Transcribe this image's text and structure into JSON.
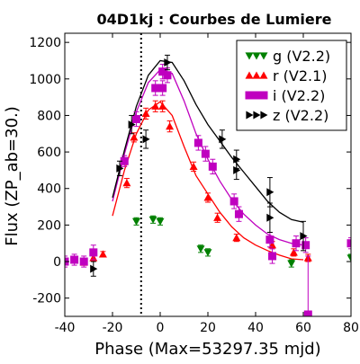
{
  "chart_data": {
    "type": "scatter",
    "title": "04D1kj : Courbes de Lumiere",
    "xlabel": "Phase (Max=53297.35 mjd)",
    "ylabel": "Flux (ZP_ab=30.)",
    "xlim": [
      -40,
      80
    ],
    "ylim": [
      -300,
      1250
    ],
    "xticks": [
      -40,
      -20,
      0,
      20,
      40,
      60,
      80
    ],
    "yticks": [
      -200,
      0,
      200,
      400,
      600,
      800,
      1000,
      1200
    ],
    "grid": false,
    "legend_position": "top-right",
    "vline_x": -8,
    "series": [
      {
        "name": "g (V2.2)",
        "color": "#008000",
        "marker": "triangle-down",
        "points": [
          {
            "x": -10,
            "y": 220,
            "err": 20
          },
          {
            "x": -3,
            "y": 230,
            "err": 20
          },
          {
            "x": 0,
            "y": 220,
            "err": 20
          },
          {
            "x": 17,
            "y": 70,
            "err": 20
          },
          {
            "x": 20,
            "y": 50,
            "err": 20
          },
          {
            "x": 55,
            "y": -10,
            "err": 20
          },
          {
            "x": 80,
            "y": 20,
            "err": 20
          }
        ]
      },
      {
        "name": "r (V2.1)",
        "color": "#ff0000",
        "marker": "triangle-up",
        "points": [
          {
            "x": -36,
            "y": 10,
            "err": 15
          },
          {
            "x": -32,
            "y": -5,
            "err": 15
          },
          {
            "x": -28,
            "y": 20,
            "err": 15
          },
          {
            "x": -24,
            "y": 40,
            "err": 15
          },
          {
            "x": -14,
            "y": 430,
            "err": 25
          },
          {
            "x": -11,
            "y": 680,
            "err": 25
          },
          {
            "x": -6,
            "y": 810,
            "err": 30
          },
          {
            "x": -2,
            "y": 850,
            "err": 30
          },
          {
            "x": 1,
            "y": 850,
            "err": 30
          },
          {
            "x": 4,
            "y": 740,
            "err": 30
          },
          {
            "x": 14,
            "y": 520,
            "err": 25
          },
          {
            "x": 20,
            "y": 350,
            "err": 25
          },
          {
            "x": 24,
            "y": 240,
            "err": 25
          },
          {
            "x": 32,
            "y": 130,
            "err": 20
          },
          {
            "x": 47,
            "y": 90,
            "err": 20
          },
          {
            "x": 56,
            "y": 50,
            "err": 20
          },
          {
            "x": 62,
            "y": 20,
            "err": 20
          }
        ],
        "curve": [
          {
            "x": -20,
            "y": 250
          },
          {
            "x": -15,
            "y": 500
          },
          {
            "x": -10,
            "y": 700
          },
          {
            "x": -5,
            "y": 830
          },
          {
            "x": 0,
            "y": 875
          },
          {
            "x": 5,
            "y": 800
          },
          {
            "x": 10,
            "y": 630
          },
          {
            "x": 15,
            "y": 470
          },
          {
            "x": 20,
            "y": 370
          },
          {
            "x": 25,
            "y": 270
          },
          {
            "x": 30,
            "y": 190
          },
          {
            "x": 35,
            "y": 130
          },
          {
            "x": 40,
            "y": 90
          },
          {
            "x": 45,
            "y": 60
          },
          {
            "x": 50,
            "y": 35
          },
          {
            "x": 55,
            "y": 15
          },
          {
            "x": 60,
            "y": 10
          }
        ]
      },
      {
        "name": "i (V2.2)",
        "color": "#bf00bf",
        "marker": "square",
        "points": [
          {
            "x": -40,
            "y": 0,
            "err": 30
          },
          {
            "x": -36,
            "y": 10,
            "err": 30
          },
          {
            "x": -32,
            "y": 0,
            "err": 30
          },
          {
            "x": -28,
            "y": 50,
            "err": 40
          },
          {
            "x": -15,
            "y": 550,
            "err": 30
          },
          {
            "x": -10,
            "y": 780,
            "err": 40
          },
          {
            "x": -2,
            "y": 950,
            "err": 40
          },
          {
            "x": 1,
            "y": 950,
            "err": 40
          },
          {
            "x": 1,
            "y": 1040,
            "err": 40
          },
          {
            "x": 3,
            "y": 1020,
            "err": 40
          },
          {
            "x": 16,
            "y": 650,
            "err": 40
          },
          {
            "x": 19,
            "y": 590,
            "err": 40
          },
          {
            "x": 22,
            "y": 520,
            "err": 40
          },
          {
            "x": 31,
            "y": 330,
            "err": 40
          },
          {
            "x": 33,
            "y": 260,
            "err": 40
          },
          {
            "x": 46,
            "y": 120,
            "err": 40
          },
          {
            "x": 47,
            "y": 30,
            "err": 40
          },
          {
            "x": 57,
            "y": 100,
            "err": 40
          },
          {
            "x": 61,
            "y": 90,
            "err": 40
          },
          {
            "x": 62,
            "y": -290,
            "err": 320
          },
          {
            "x": 80,
            "y": 100,
            "err": 30
          }
        ],
        "curve": [
          {
            "x": -20,
            "y": 330
          },
          {
            "x": -15,
            "y": 590
          },
          {
            "x": -10,
            "y": 820
          },
          {
            "x": -5,
            "y": 980
          },
          {
            "x": 0,
            "y": 1050
          },
          {
            "x": 5,
            "y": 1030
          },
          {
            "x": 10,
            "y": 880
          },
          {
            "x": 15,
            "y": 700
          },
          {
            "x": 20,
            "y": 560
          },
          {
            "x": 25,
            "y": 440
          },
          {
            "x": 30,
            "y": 340
          },
          {
            "x": 35,
            "y": 260
          },
          {
            "x": 40,
            "y": 200
          },
          {
            "x": 45,
            "y": 150
          },
          {
            "x": 50,
            "y": 120
          },
          {
            "x": 55,
            "y": 100
          },
          {
            "x": 60,
            "y": 90
          }
        ]
      },
      {
        "name": "z (V2.2)",
        "color": "#000000",
        "marker": "triangle-right",
        "points": [
          {
            "x": -28,
            "y": -40,
            "err": 40
          },
          {
            "x": -17,
            "y": 510,
            "err": 40
          },
          {
            "x": -12,
            "y": 750,
            "err": 50
          },
          {
            "x": -6,
            "y": 670,
            "err": 50
          },
          {
            "x": 3,
            "y": 1090,
            "err": 40
          },
          {
            "x": 26,
            "y": 670,
            "err": 50
          },
          {
            "x": 32,
            "y": 560,
            "err": 50
          },
          {
            "x": 32,
            "y": 500,
            "err": 50
          },
          {
            "x": 46,
            "y": 380,
            "err": 80
          },
          {
            "x": 46,
            "y": 240,
            "err": 80
          },
          {
            "x": 60,
            "y": 140,
            "err": 80
          }
        ],
        "curve": [
          {
            "x": -20,
            "y": 350
          },
          {
            "x": -15,
            "y": 610
          },
          {
            "x": -10,
            "y": 850
          },
          {
            "x": -5,
            "y": 1020
          },
          {
            "x": 0,
            "y": 1100
          },
          {
            "x": 5,
            "y": 1090
          },
          {
            "x": 10,
            "y": 990
          },
          {
            "x": 15,
            "y": 860
          },
          {
            "x": 20,
            "y": 750
          },
          {
            "x": 25,
            "y": 660
          },
          {
            "x": 30,
            "y": 570
          },
          {
            "x": 35,
            "y": 490
          },
          {
            "x": 40,
            "y": 410
          },
          {
            "x": 45,
            "y": 330
          },
          {
            "x": 50,
            "y": 270
          },
          {
            "x": 55,
            "y": 230
          },
          {
            "x": 60,
            "y": 215
          }
        ]
      }
    ]
  }
}
